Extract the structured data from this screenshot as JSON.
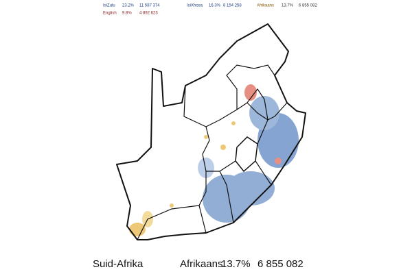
{
  "legend": [
    {
      "name": "IsiZulu",
      "percent": "23.2%",
      "count": "11 587 374"
    },
    {
      "name": "English",
      "percent": "9.8%",
      "count": "4 892 623"
    },
    {
      "name": "IsiXhosa",
      "percent": "16.3%",
      "count": "8 154 258"
    },
    {
      "name": "Afrikaans",
      "percent": "13.7%",
      "count": "6 855 082"
    }
  ],
  "footer": {
    "region": "Suid-Afrika",
    "language": "Afrikaans",
    "percent": "13.7%",
    "count": "6 855 082"
  }
}
